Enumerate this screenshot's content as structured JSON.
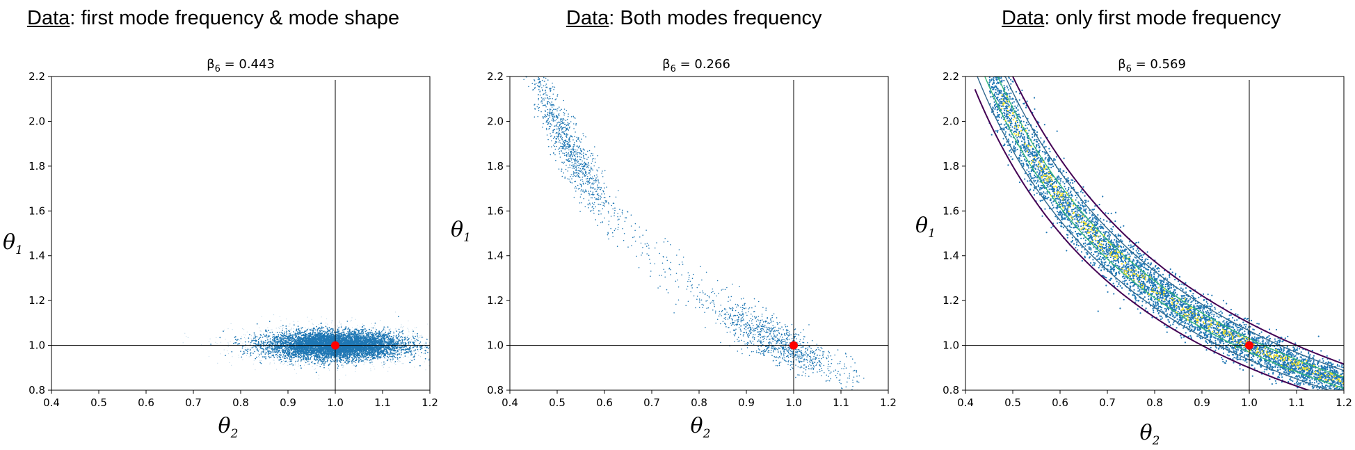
{
  "panels": [
    {
      "heading_prefix": "Data",
      "heading_rest": ": first mode frequency & mode shape",
      "title_symbol": "β",
      "title_sub": "6",
      "title_value": " = 0.443"
    },
    {
      "heading_prefix": "Data",
      "heading_rest": ": Both modes frequency",
      "title_symbol": "β",
      "title_sub": "6",
      "title_value": " = 0.266"
    },
    {
      "heading_prefix": "Data",
      "heading_rest": ": only first mode frequency",
      "title_symbol": "β",
      "title_sub": "6",
      "title_value": " = 0.569"
    }
  ],
  "axis_labels": {
    "x_symbol": "θ",
    "x_sub": "2",
    "y_symbol": "θ",
    "y_sub": "1"
  },
  "colors": {
    "samples": "#1f77b4",
    "true_point": "#ff0000",
    "contour_outer": "#440154",
    "contour_mid": "#31688e",
    "contour_inner": "#35b779",
    "contour_peak": "#fde725"
  },
  "chart_data": [
    {
      "type": "scatter",
      "title": "β6 = 0.443",
      "xlabel": "θ2",
      "ylabel": "θ1",
      "xlim": [
        0.4,
        1.2
      ],
      "ylim": [
        0.8,
        2.2
      ],
      "xticks": [
        "0.4",
        "0.5",
        "0.6",
        "0.7",
        "0.8",
        "0.9",
        "1.0",
        "1.1",
        "1.2"
      ],
      "yticks": [
        "0.8",
        "1.0",
        "1.2",
        "1.4",
        "1.6",
        "1.8",
        "2.0",
        "2.2"
      ],
      "reference_lines": {
        "x": 1.0,
        "y": 1.0
      },
      "true_point": {
        "x": 1.0,
        "y": 1.0
      },
      "sample_cloud": {
        "shape": "ellipse",
        "center_x": 1.0,
        "center_y": 1.0,
        "spread_x": 0.07,
        "spread_y": 0.03
      }
    },
    {
      "type": "scatter",
      "title": "β6 = 0.266",
      "xlabel": "θ2",
      "ylabel": "θ1",
      "xlim": [
        0.4,
        1.2
      ],
      "ylim": [
        0.8,
        2.2
      ],
      "xticks": [
        "0.4",
        "0.5",
        "0.6",
        "0.7",
        "0.8",
        "0.9",
        "1.0",
        "1.1",
        "1.2"
      ],
      "yticks": [
        "0.8",
        "1.0",
        "1.2",
        "1.4",
        "1.6",
        "1.8",
        "2.0",
        "2.2"
      ],
      "reference_lines": {
        "x": 1.0,
        "y": 1.0
      },
      "true_point": {
        "x": 1.0,
        "y": 1.0
      },
      "sample_cloud": {
        "shape": "curved-band",
        "x_range": [
          0.45,
          1.15
        ],
        "peaks": [
          {
            "x": 0.52,
            "y": 1.95
          },
          {
            "x": 0.97,
            "y": 1.0
          }
        ]
      }
    },
    {
      "type": "scatter",
      "title": "β6 = 0.569",
      "xlabel": "θ2",
      "ylabel": "θ1",
      "xlim": [
        0.4,
        1.2
      ],
      "ylim": [
        0.8,
        2.2
      ],
      "xticks": [
        "0.4",
        "0.5",
        "0.6",
        "0.7",
        "0.8",
        "0.9",
        "1.0",
        "1.1",
        "1.2"
      ],
      "yticks": [
        "0.8",
        "1.0",
        "1.2",
        "1.4",
        "1.6",
        "1.8",
        "2.0",
        "2.2"
      ],
      "reference_lines": {
        "x": 1.0,
        "y": 1.0
      },
      "true_point": {
        "x": 1.0,
        "y": 1.0
      },
      "sample_cloud": {
        "shape": "hyperbolic-band",
        "relation": "θ1·θ2 = 1",
        "x_range": [
          0.45,
          1.2
        ]
      },
      "contours": true
    }
  ]
}
